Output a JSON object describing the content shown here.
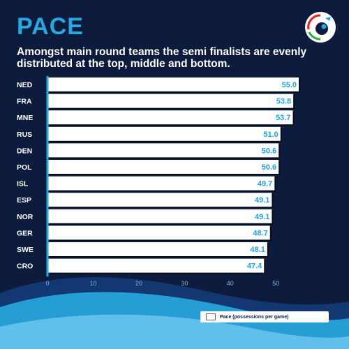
{
  "header": {
    "title": "PACE",
    "subtitle": "Amongst main round teams the semi finalists are evenly distributed at the top, middle and bottom."
  },
  "logo": {
    "icon": "ehf-euro-logo-icon",
    "colors": [
      "#e2231a",
      "#3aa935",
      "#29a8e0",
      "#0d1b3d"
    ]
  },
  "colors": {
    "background": "#0d1b3d",
    "accent": "#29a8e0",
    "bar_fill": "#ffffff",
    "value_label": "#1fa3dc",
    "team_label": "#ffffff",
    "axis": "#29a8e0"
  },
  "chart_data": {
    "type": "bar",
    "orientation": "horizontal",
    "categories": [
      "NED",
      "FRA",
      "MNE",
      "RUS",
      "DEN",
      "POL",
      "ISL",
      "ESP",
      "NOR",
      "GER",
      "SWE",
      "CRO"
    ],
    "series": [
      {
        "name": "Pace (possessions per game)",
        "values": [
          55.0,
          53.8,
          53.7,
          51.0,
          50.6,
          50.6,
          49.7,
          49.1,
          49.1,
          48.7,
          48.1,
          47.4
        ],
        "labels": [
          "55.0",
          "53.8",
          "53.7",
          "51.0",
          "50.6",
          "50.6",
          "49.7",
          "49.1",
          "49.1",
          "48.7",
          "48.1",
          "47.4"
        ]
      }
    ],
    "xlim": [
      0,
      55
    ],
    "xticks": [
      "0",
      "10",
      "20",
      "30",
      "40",
      "50"
    ],
    "xtick_values": [
      0,
      10,
      20,
      30,
      40,
      50
    ],
    "legend": {
      "position": "bottom-right",
      "label": "Pace (possessions per game)"
    },
    "grid": false
  }
}
